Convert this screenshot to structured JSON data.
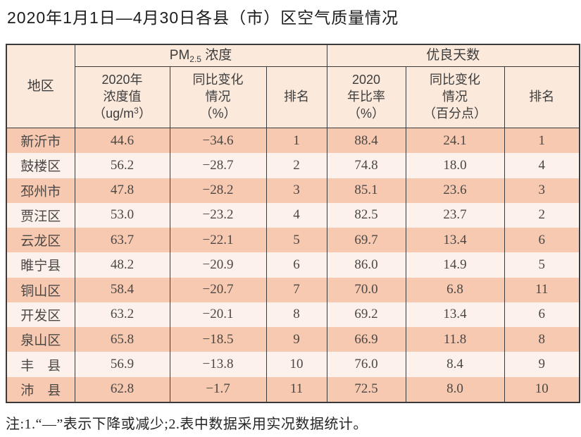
{
  "page": {
    "title": "2020年1月1日—4月30日各县（市）区空气质量情况"
  },
  "table": {
    "region_header": "地区",
    "groups": {
      "pm25": {
        "main": "PM",
        "sub": "2.5",
        "rest": " 浓度"
      },
      "good_days": "优良天数"
    },
    "subheaders": {
      "concentration": {
        "line1": "2020年",
        "line2": "浓度值",
        "line3_pre": "（ug/m",
        "sup": "3",
        "line3_post": "）"
      },
      "yoy_change_pct": {
        "line1": "同比变化",
        "line2": "情况",
        "line3": "（%）"
      },
      "rank_pm": "排名",
      "ratio": {
        "line1": "2020",
        "line2": "年比率",
        "line3": "（%）"
      },
      "yoy_change_pts": {
        "line1": "同比变化",
        "line2": "情况",
        "line3": "（百分点）"
      },
      "rank_days": "排名"
    },
    "rows": [
      [
        "新沂市",
        "44.6",
        "−34.6",
        "1",
        "88.4",
        "24.1",
        "1"
      ],
      [
        "鼓楼区",
        "56.2",
        "−28.7",
        "2",
        "74.8",
        "18.0",
        "4"
      ],
      [
        "邳州市",
        "47.8",
        "−28.2",
        "3",
        "85.1",
        "23.6",
        "3"
      ],
      [
        "贾汪区",
        "53.0",
        "−23.2",
        "4",
        "82.5",
        "23.7",
        "2"
      ],
      [
        "云龙区",
        "63.7",
        "−22.1",
        "5",
        "69.7",
        "13.4",
        "6"
      ],
      [
        "睢宁县",
        "48.2",
        "−20.9",
        "6",
        "86.0",
        "14.9",
        "5"
      ],
      [
        "铜山区",
        "58.4",
        "−20.7",
        "7",
        "70.0",
        "6.8",
        "11"
      ],
      [
        "开发区",
        "63.2",
        "−20.1",
        "8",
        "69.2",
        "13.4",
        "6"
      ],
      [
        "泉山区",
        "65.8",
        "−18.5",
        "9",
        "66.9",
        "11.8",
        "8"
      ],
      [
        "丰　县",
        "56.9",
        "−13.8",
        "10",
        "76.0",
        "8.4",
        "9"
      ],
      [
        "沛　县",
        "62.8",
        "−1.7",
        "11",
        "72.5",
        "8.0",
        "10"
      ]
    ]
  },
  "note": "注:1.“—”表示下降或减少;2.表中数据采用实况数据统计。",
  "colors": {
    "row_salmon": "#f7c9b1",
    "row_light": "#fdf2eb",
    "header_bg": "#fbe9dc",
    "border": "#3a3a3a"
  }
}
